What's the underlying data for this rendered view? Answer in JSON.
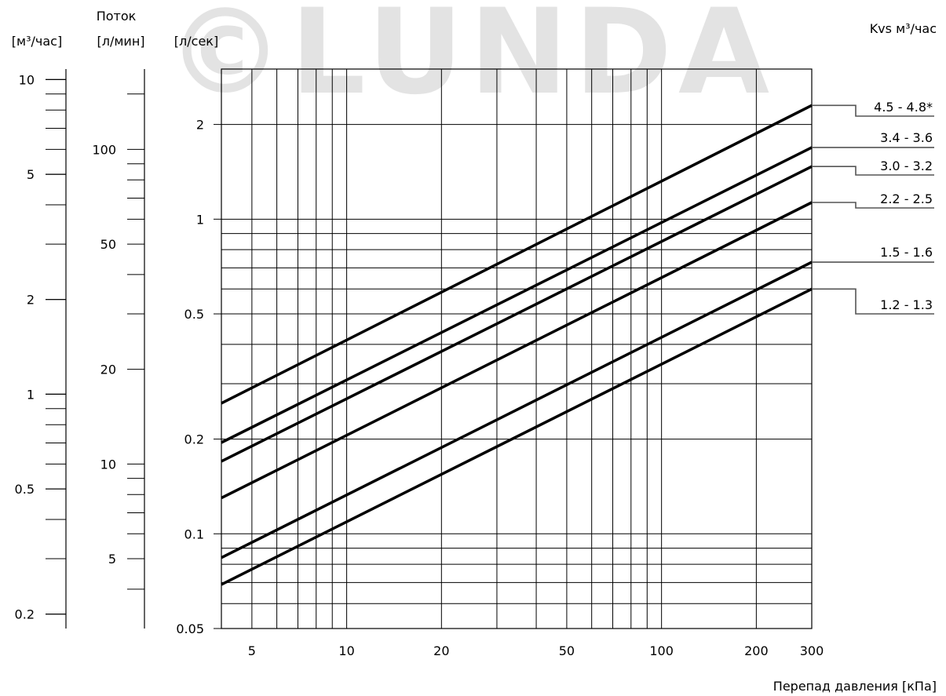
{
  "watermark": "©LUNDA",
  "header": {
    "flow_title": "Поток",
    "unit_m3h": "[м³/час]",
    "unit_lmin": "[л/мин]",
    "unit_ls": "[л/сек]",
    "kvs_title": "Kvs м³/час"
  },
  "colors": {
    "line": "#000000",
    "grid": "#000000",
    "leader": "#555555",
    "watermark": "#e3e3e3"
  },
  "chart_data": {
    "type": "line",
    "x_scale": "log",
    "y_scale": "log",
    "xlabel": "Перепад давления [кПа]",
    "ylabel": "",
    "xlim": [
      4,
      300
    ],
    "ylim": [
      0.05,
      3.0
    ],
    "grid": true,
    "x_ticks": [
      5,
      10,
      20,
      50,
      100,
      200,
      300
    ],
    "x_tick_labels": [
      "5",
      "10",
      "20",
      "50",
      "100",
      "200",
      "300"
    ],
    "y_ticks": [
      0.05,
      0.1,
      0.2,
      0.5,
      1,
      2
    ],
    "y_tick_labels": [
      "0.05",
      "0.1",
      "0.2",
      "0.5",
      "1",
      "2"
    ],
    "series": [
      {
        "name": "4.5 - 4.8*",
        "x": [
          4,
          300
        ],
        "y": [
          0.26,
          2.3
        ]
      },
      {
        "name": "3.4 - 3.6",
        "x": [
          4,
          300
        ],
        "y": [
          0.195,
          1.69
        ]
      },
      {
        "name": "3.0 - 3.2",
        "x": [
          4,
          300
        ],
        "y": [
          0.17,
          1.47
        ]
      },
      {
        "name": "2.2 - 2.5",
        "x": [
          4,
          300
        ],
        "y": [
          0.13,
          1.13
        ]
      },
      {
        "name": "1.5 - 1.6",
        "x": [
          4,
          300
        ],
        "y": [
          0.084,
          0.73
        ]
      },
      {
        "name": "1.2 - 1.3",
        "x": [
          4,
          300
        ],
        "y": [
          0.069,
          0.6
        ]
      }
    ],
    "side_scales": {
      "m3h": {
        "ticks": [
          0.2,
          0.5,
          1,
          2,
          5,
          10
        ],
        "tick_labels": [
          "0.2",
          "0.5",
          "1",
          "2",
          "5",
          "10"
        ]
      },
      "lmin": {
        "ticks": [
          5,
          10,
          20,
          50,
          100
        ],
        "tick_labels": [
          "5",
          "10",
          "20",
          "50",
          "100"
        ]
      }
    }
  }
}
